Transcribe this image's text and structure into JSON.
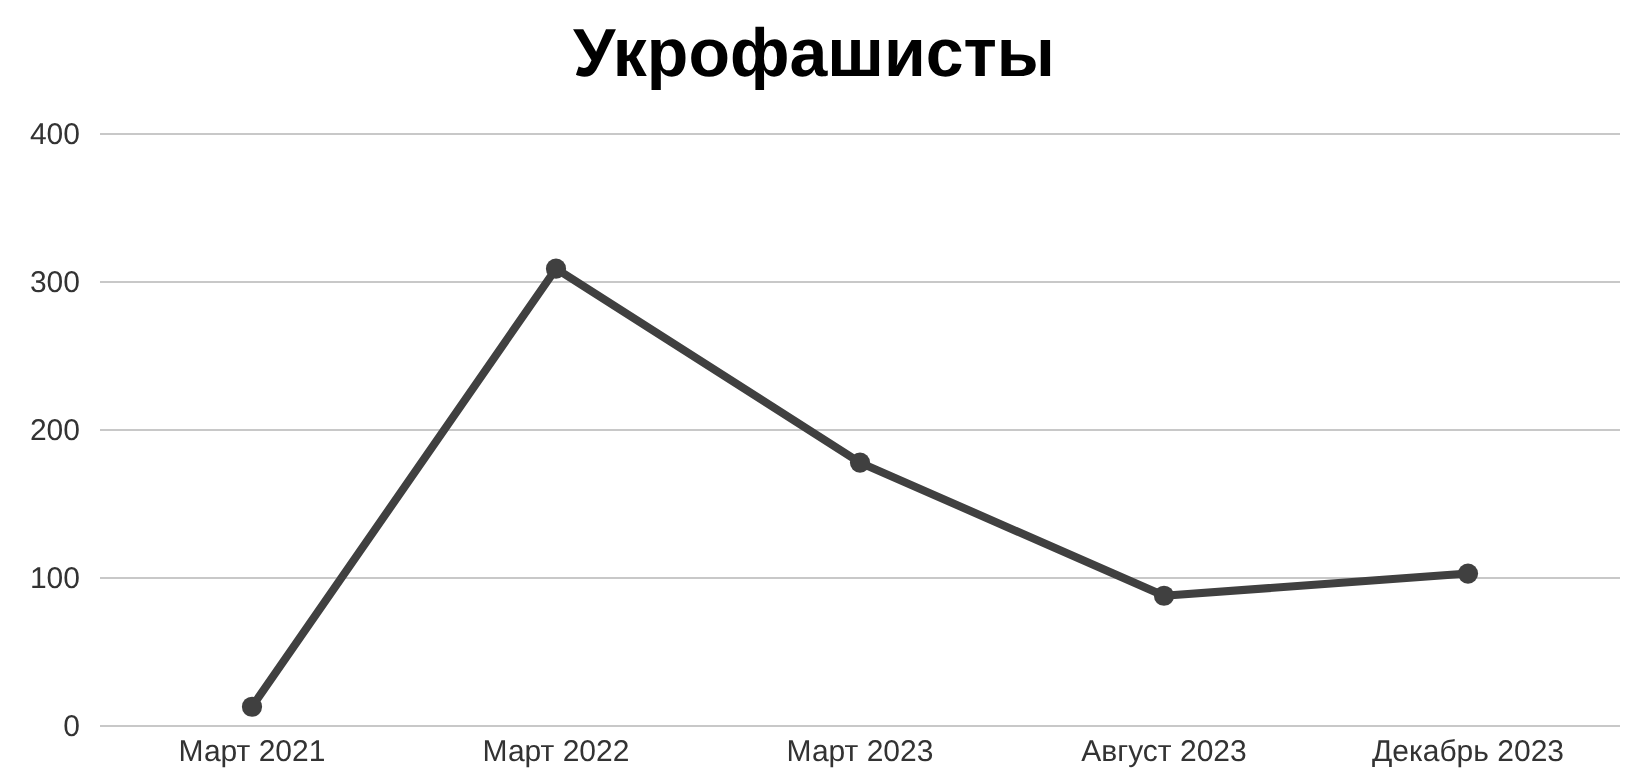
{
  "chart_data": {
    "type": "line",
    "title": "Укрофашисты",
    "categories": [
      "Март 2021",
      "Март 2022",
      "Март 2023",
      "Август 2023",
      "Декабрь 2023"
    ],
    "series": [
      {
        "color": "#404040",
        "values": [
          13,
          309,
          178,
          88,
          103
        ]
      }
    ],
    "ylim": [
      0,
      400
    ],
    "yticks": [
      0,
      100,
      200,
      300,
      400
    ],
    "grid": "y",
    "marker": "circle"
  }
}
